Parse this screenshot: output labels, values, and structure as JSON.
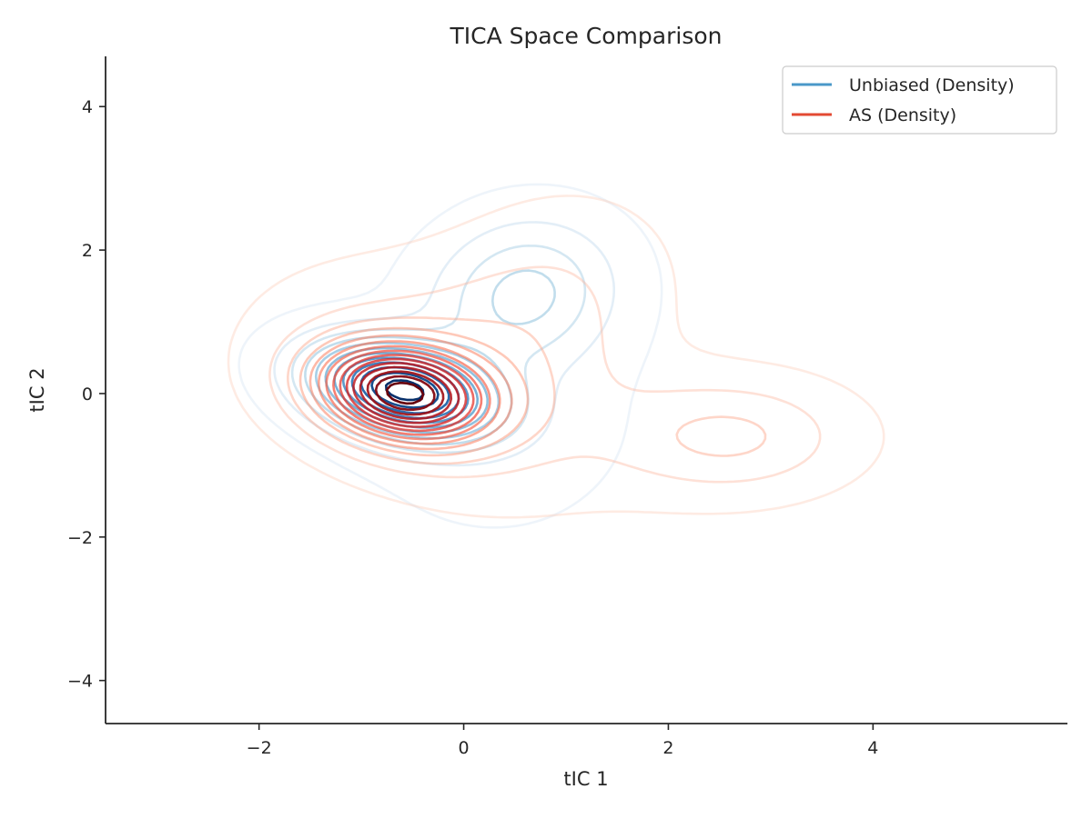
{
  "chart_data": {
    "type": "contour",
    "title": "TICA Space Comparison",
    "xlabel": "tIC 1",
    "ylabel": "tIC 2",
    "xlim": [
      -3.5,
      5.9
    ],
    "ylim": [
      -4.6,
      4.7
    ],
    "xticks": [
      -2,
      0,
      2,
      4
    ],
    "yticks": [
      -4,
      -2,
      0,
      2,
      4
    ],
    "xtick_labels": [
      "−2",
      "0",
      "2",
      "4"
    ],
    "ytick_labels": [
      "−4",
      "−2",
      "0",
      "2",
      "4"
    ],
    "grid": false,
    "legend_position": "top-right",
    "series": [
      {
        "name": "Unbiased (Density)",
        "legend_color": "#4a98c9",
        "colormap": "Blues",
        "n_levels": 12,
        "components": [
          {
            "weight": 0.55,
            "mean": [
              -0.6,
              0.05
            ],
            "sx": 0.6,
            "sy": 0.45,
            "rho": -0.3
          },
          {
            "weight": 0.28,
            "mean": [
              0.6,
              1.4
            ],
            "sx": 0.6,
            "sy": 0.7,
            "rho": 0.1
          },
          {
            "weight": 0.17,
            "mean": [
              0.3,
              -0.4
            ],
            "sx": 1.0,
            "sy": 1.2,
            "rho": 0.0
          }
        ]
      },
      {
        "name": "AS (Density)",
        "legend_color": "#e34a33",
        "colormap": "Reds",
        "n_levels": 15,
        "components": [
          {
            "weight": 0.4,
            "mean": [
              -0.6,
              0.0
            ],
            "sx": 0.55,
            "sy": 0.45,
            "rho": -0.2
          },
          {
            "weight": 0.3,
            "mean": [
              -0.2,
              0.1
            ],
            "sx": 1.1,
            "sy": 1.0,
            "rho": -0.3
          },
          {
            "weight": 0.15,
            "mean": [
              0.8,
              1.2
            ],
            "sx": 0.8,
            "sy": 1.0,
            "rho": 0.2
          },
          {
            "weight": 0.15,
            "mean": [
              2.6,
              -0.6
            ],
            "sx": 0.8,
            "sy": 0.55,
            "rho": 0.0
          }
        ]
      }
    ]
  }
}
